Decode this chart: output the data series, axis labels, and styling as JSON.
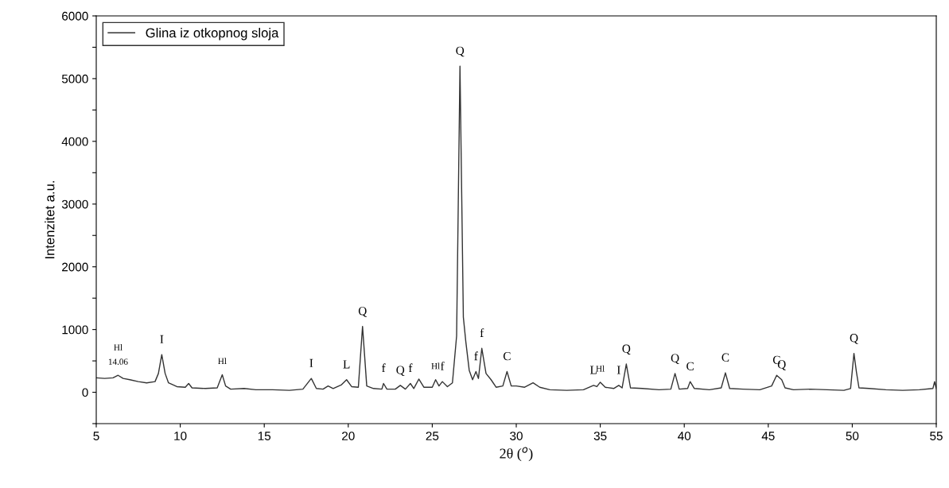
{
  "chart_data": {
    "type": "line",
    "xlabel": "2θ ($^{o}$)",
    "ylabel": "Intenzitet a.u.",
    "xlim": [
      5,
      55
    ],
    "xticks": [
      5,
      10,
      15,
      20,
      25,
      30,
      35,
      40,
      45,
      50,
      55
    ],
    "ylim": [
      -500,
      6000
    ],
    "yticks": [
      {
        "value": -500,
        "label": null
      },
      0,
      {
        "value": 500,
        "label": null
      },
      1000,
      {
        "value": 1500,
        "label": null
      },
      2000,
      {
        "value": 2500,
        "label": null
      },
      3000,
      {
        "value": 3500,
        "label": null
      },
      4000,
      {
        "value": 4500,
        "label": null
      },
      5000,
      {
        "value": 5500,
        "label": null
      },
      6000
    ],
    "legend": "top left",
    "grid": false,
    "series": [
      {
        "name": "Glina iz otkopnog sloja",
        "color": "#333333",
        "x": [
          5.0,
          5.5,
          6.0,
          6.3,
          6.6,
          7.0,
          7.5,
          8.0,
          8.5,
          8.7,
          8.9,
          9.1,
          9.3,
          9.8,
          10.3,
          10.5,
          10.7,
          11.5,
          12.2,
          12.5,
          12.7,
          13.0,
          13.8,
          14.5,
          15.5,
          16.5,
          17.3,
          17.8,
          18.1,
          18.5,
          18.8,
          19.1,
          19.6,
          19.9,
          20.2,
          20.6,
          20.85,
          21.1,
          21.5,
          22.0,
          22.1,
          22.3,
          22.8,
          23.1,
          23.4,
          23.7,
          23.9,
          24.2,
          24.5,
          25.0,
          25.2,
          25.4,
          25.6,
          25.9,
          26.2,
          26.45,
          26.65,
          26.85,
          27.0,
          27.2,
          27.4,
          27.6,
          27.75,
          27.95,
          28.2,
          28.5,
          28.8,
          29.2,
          29.45,
          29.7,
          30.0,
          30.5,
          31.0,
          31.4,
          32.0,
          33.0,
          34.0,
          34.6,
          34.8,
          35.0,
          35.3,
          35.8,
          36.1,
          36.3,
          36.55,
          36.8,
          37.5,
          38.5,
          39.2,
          39.45,
          39.7,
          40.2,
          40.35,
          40.6,
          41.5,
          42.2,
          42.45,
          42.7,
          43.5,
          44.5,
          45.2,
          45.5,
          45.8,
          46.0,
          46.5,
          47.5,
          48.5,
          49.5,
          49.9,
          50.1,
          50.25,
          50.4,
          51.0,
          52.0,
          53.0,
          54.0,
          54.8,
          54.9,
          55.0
        ],
        "values": [
          230,
          220,
          230,
          270,
          220,
          200,
          170,
          150,
          170,
          300,
          600,
          300,
          150,
          90,
          80,
          140,
          70,
          60,
          70,
          280,
          100,
          50,
          60,
          40,
          40,
          30,
          50,
          220,
          60,
          50,
          100,
          60,
          120,
          200,
          90,
          80,
          1050,
          100,
          60,
          50,
          140,
          50,
          50,
          110,
          50,
          140,
          60,
          210,
          80,
          80,
          200,
          100,
          170,
          90,
          150,
          900,
          5200,
          1200,
          800,
          350,
          200,
          330,
          220,
          700,
          300,
          200,
          80,
          100,
          330,
          100,
          100,
          80,
          150,
          80,
          40,
          30,
          40,
          110,
          90,
          160,
          80,
          60,
          110,
          70,
          450,
          70,
          60,
          40,
          50,
          300,
          50,
          60,
          170,
          60,
          40,
          70,
          310,
          60,
          50,
          40,
          100,
          270,
          200,
          70,
          40,
          50,
          40,
          30,
          60,
          620,
          320,
          70,
          60,
          40,
          30,
          40,
          60,
          170,
          60
        ]
      }
    ],
    "annotations": [
      {
        "text": "Hl",
        "x": 6.3,
        "y": 270
      },
      {
        "text": "14.06",
        "x": 6.3,
        "y": 270
      },
      {
        "text": "I",
        "x": 8.9,
        "y": 600
      },
      {
        "text": "Hl",
        "x": 12.5,
        "y": 280
      },
      {
        "text": "I",
        "x": 17.8,
        "y": 220
      },
      {
        "text": "L",
        "x": 19.9,
        "y": 200
      },
      {
        "text": "Q",
        "x": 20.85,
        "y": 1050
      },
      {
        "text": "f",
        "x": 22.1,
        "y": 140
      },
      {
        "text": "Q",
        "x": 23.1,
        "y": 110
      },
      {
        "text": "f",
        "x": 23.7,
        "y": 140
      },
      {
        "text": "Hl",
        "x": 25.2,
        "y": 200
      },
      {
        "text": "f",
        "x": 25.6,
        "y": 170
      },
      {
        "text": "Q",
        "x": 26.65,
        "y": 5200
      },
      {
        "text": "f",
        "x": 27.6,
        "y": 330
      },
      {
        "text": "f",
        "x": 27.95,
        "y": 700
      },
      {
        "text": "C",
        "x": 29.45,
        "y": 330
      },
      {
        "text": "L",
        "x": 34.6,
        "y": 110
      },
      {
        "text": "Hl",
        "x": 35.0,
        "y": 160
      },
      {
        "text": "I",
        "x": 36.1,
        "y": 110
      },
      {
        "text": "Q",
        "x": 36.55,
        "y": 450
      },
      {
        "text": "Q",
        "x": 39.45,
        "y": 300
      },
      {
        "text": "C",
        "x": 40.35,
        "y": 170
      },
      {
        "text": "C",
        "x": 42.45,
        "y": 310
      },
      {
        "text": "C",
        "x": 45.5,
        "y": 270
      },
      {
        "text": "Q",
        "x": 45.8,
        "y": 200
      },
      {
        "text": "Q",
        "x": 50.1,
        "y": 620
      }
    ]
  }
}
